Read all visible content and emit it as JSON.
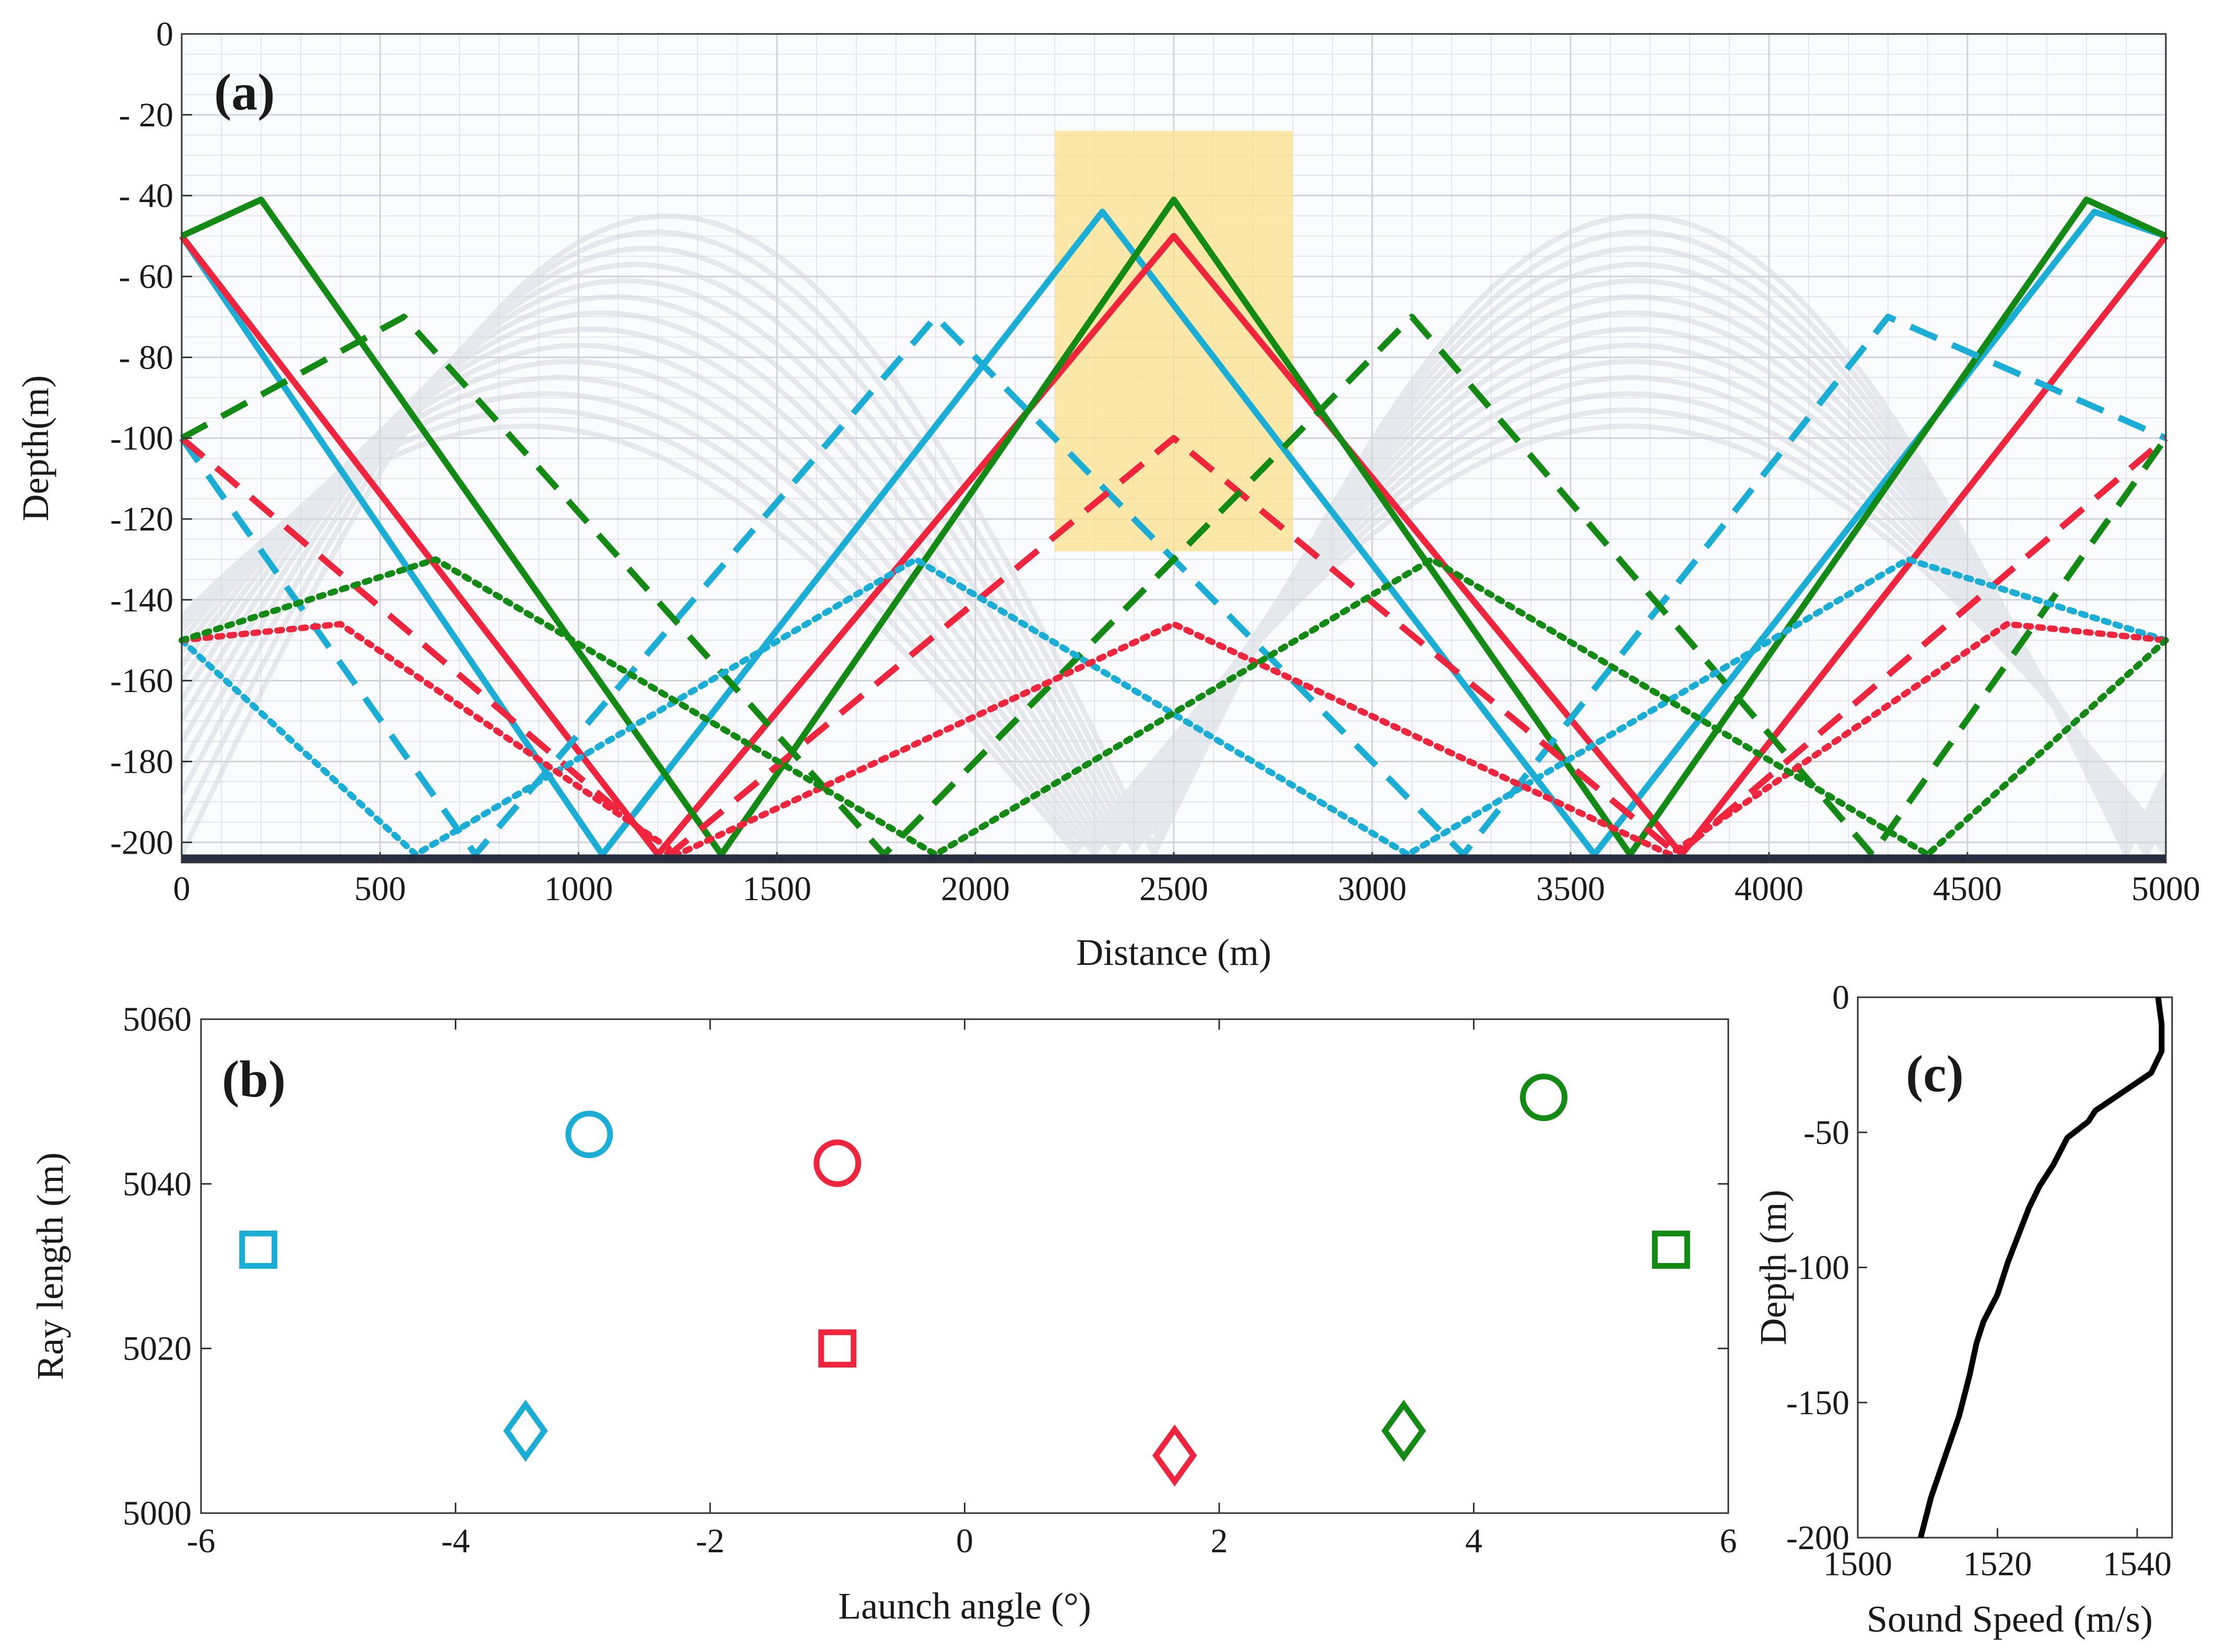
{
  "chart_data": [
    {
      "panel": "a",
      "type": "line",
      "panel_label": "(a)",
      "xlabel": "Distance (m)",
      "ylabel": "Depth(m)",
      "xlim": [
        0,
        5000
      ],
      "ylim": [
        -205,
        0
      ],
      "xticks": [
        0,
        500,
        1000,
        1500,
        2000,
        2500,
        3000,
        3500,
        4000,
        4500,
        5000
      ],
      "yticks": [
        0,
        -20,
        -40,
        -60,
        -80,
        -100,
        -120,
        -140,
        -160,
        -180,
        -200
      ],
      "ytick_labels": [
        "0",
        "- 20",
        "- 40",
        "- 60",
        "- 80",
        "-100",
        "-120",
        "-140",
        "-160",
        "-180",
        "-200"
      ],
      "highlight_box": {
        "x": [
          2200,
          2800
        ],
        "y": [
          -128,
          -24
        ],
        "color": "#fbe08c"
      },
      "seabed_depth": -203,
      "colors": {
        "cyan": "#1aaed6",
        "red": "#f0243c",
        "green": "#138a13",
        "gray": "#d5d9e0",
        "seabed": "#262d40"
      },
      "rays": [
        {
          "name": "cyan-solid",
          "color": "cyan",
          "style": "solid",
          "points": [
            [
              0,
              -50
            ],
            [
              1060,
              -203
            ],
            [
              2320,
              -44
            ],
            [
              3560,
              -203
            ],
            [
              4820,
              -44
            ],
            [
              5000,
              -50
            ]
          ]
        },
        {
          "name": "red-solid",
          "color": "red",
          "style": "solid",
          "points": [
            [
              0,
              -50
            ],
            [
              1200,
              -203
            ],
            [
              2500,
              -50
            ],
            [
              3780,
              -203
            ],
            [
              5000,
              -50
            ]
          ]
        },
        {
          "name": "green-solid",
          "color": "green",
          "style": "solid",
          "points": [
            [
              0,
              -50
            ],
            [
              200,
              -41
            ],
            [
              1360,
              -203
            ],
            [
              2500,
              -41
            ],
            [
              3650,
              -203
            ],
            [
              4800,
              -41
            ],
            [
              5000,
              -50
            ]
          ]
        },
        {
          "name": "cyan-dashed",
          "color": "cyan",
          "style": "dashed",
          "points": [
            [
              0,
              -100
            ],
            [
              740,
              -203
            ],
            [
              1900,
              -70
            ],
            [
              3230,
              -203
            ],
            [
              4300,
              -70
            ],
            [
              5000,
              -100
            ]
          ]
        },
        {
          "name": "red-dashed",
          "color": "red",
          "style": "dashed",
          "points": [
            [
              0,
              -100
            ],
            [
              1230,
              -203
            ],
            [
              2500,
              -100
            ],
            [
              3770,
              -203
            ],
            [
              5000,
              -100
            ]
          ]
        },
        {
          "name": "green-dashed",
          "color": "green",
          "style": "dashed",
          "points": [
            [
              0,
              -100
            ],
            [
              560,
              -70
            ],
            [
              1770,
              -203
            ],
            [
              3100,
              -70
            ],
            [
              4260,
              -203
            ],
            [
              5000,
              -100
            ]
          ]
        },
        {
          "name": "cyan-dotted",
          "color": "cyan",
          "style": "dotted",
          "points": [
            [
              0,
              -150
            ],
            [
              590,
              -203
            ],
            [
              1850,
              -130
            ],
            [
              3090,
              -203
            ],
            [
              4350,
              -130
            ],
            [
              5000,
              -150
            ]
          ]
        },
        {
          "name": "red-dotted",
          "color": "red",
          "style": "dotted",
          "points": [
            [
              0,
              -150
            ],
            [
              400,
              -146
            ],
            [
              1250,
              -203
            ],
            [
              2500,
              -146
            ],
            [
              3750,
              -203
            ],
            [
              4600,
              -146
            ],
            [
              5000,
              -150
            ]
          ]
        },
        {
          "name": "green-dotted",
          "color": "green",
          "style": "dotted",
          "points": [
            [
              0,
              -150
            ],
            [
              640,
              -130
            ],
            [
              1900,
              -203
            ],
            [
              3150,
              -130
            ],
            [
              4400,
              -203
            ],
            [
              5000,
              -150
            ]
          ]
        }
      ]
    },
    {
      "panel": "b",
      "type": "scatter",
      "panel_label": "(b)",
      "xlabel": "Launch angle (°)",
      "ylabel": "Ray length (m)",
      "xlim": [
        -6,
        6
      ],
      "ylim": [
        5000,
        5060
      ],
      "xticks": [
        -6,
        -4,
        -2,
        0,
        2,
        4,
        6
      ],
      "yticks": [
        5000,
        5020,
        5040,
        5060
      ],
      "points": [
        {
          "x": -5.55,
          "y": 5032,
          "marker": "square",
          "color": "cyan"
        },
        {
          "x": -2.95,
          "y": 5046,
          "marker": "circle",
          "color": "cyan"
        },
        {
          "x": -3.45,
          "y": 5010,
          "marker": "diamond",
          "color": "cyan"
        },
        {
          "x": -1.0,
          "y": 5042.5,
          "marker": "circle",
          "color": "red"
        },
        {
          "x": -1.0,
          "y": 5020,
          "marker": "square",
          "color": "red"
        },
        {
          "x": 1.65,
          "y": 5007,
          "marker": "diamond",
          "color": "red"
        },
        {
          "x": 4.55,
          "y": 5050.5,
          "marker": "circle",
          "color": "green"
        },
        {
          "x": 5.55,
          "y": 5032,
          "marker": "square",
          "color": "green"
        },
        {
          "x": 3.45,
          "y": 5010,
          "marker": "diamond",
          "color": "green"
        }
      ]
    },
    {
      "panel": "c",
      "type": "line",
      "panel_label": "(c)",
      "xlabel": "Sound Speed (m/s)",
      "ylabel": "Depth (m)",
      "xlim": [
        1500,
        1545
      ],
      "ylim": [
        -200,
        0
      ],
      "xticks": [
        1500,
        1520,
        1540
      ],
      "yticks": [
        0,
        -50,
        -100,
        -150,
        -200
      ],
      "profile": [
        [
          1543,
          0
        ],
        [
          1543.5,
          -10
        ],
        [
          1543.5,
          -20
        ],
        [
          1542,
          -28
        ],
        [
          1538,
          -35
        ],
        [
          1534,
          -42
        ],
        [
          1533,
          -46
        ],
        [
          1530,
          -52
        ],
        [
          1528,
          -62
        ],
        [
          1526,
          -70
        ],
        [
          1524.5,
          -78
        ],
        [
          1523,
          -88
        ],
        [
          1521.5,
          -98
        ],
        [
          1520,
          -110
        ],
        [
          1518,
          -120
        ],
        [
          1517,
          -128
        ],
        [
          1516,
          -140
        ],
        [
          1514.5,
          -155
        ],
        [
          1512.5,
          -170
        ],
        [
          1510.5,
          -185
        ],
        [
          1509,
          -200
        ]
      ]
    }
  ]
}
